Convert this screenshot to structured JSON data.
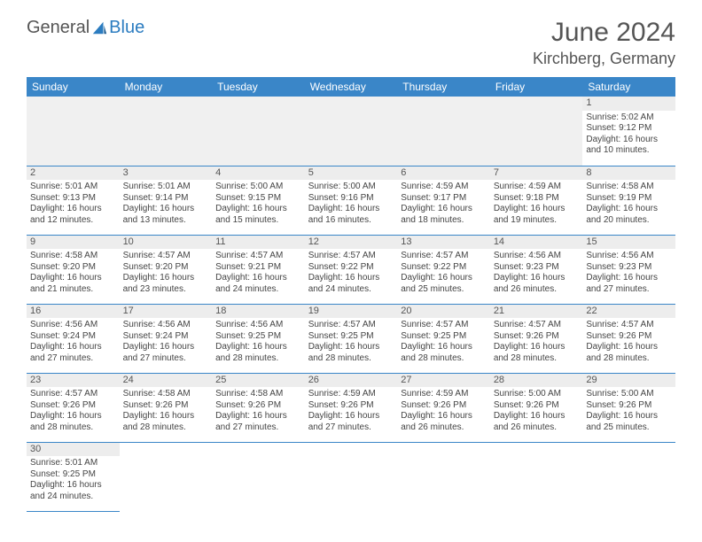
{
  "brand": {
    "general": "General",
    "blue": "Blue"
  },
  "title": "June 2024",
  "location": "Kirchberg, Germany",
  "colors": {
    "header_bg": "#3a86c8",
    "header_text": "#ffffff",
    "daynum_bg": "#ededed",
    "border": "#3a86c8",
    "brand_blue": "#2b7cc0"
  },
  "weekdays": [
    "Sunday",
    "Monday",
    "Tuesday",
    "Wednesday",
    "Thursday",
    "Friday",
    "Saturday"
  ],
  "first_weekday_index": 6,
  "days": [
    {
      "n": 1,
      "sr": "5:02 AM",
      "ss": "9:12 PM",
      "dl": "16 hours and 10 minutes."
    },
    {
      "n": 2,
      "sr": "5:01 AM",
      "ss": "9:13 PM",
      "dl": "16 hours and 12 minutes."
    },
    {
      "n": 3,
      "sr": "5:01 AM",
      "ss": "9:14 PM",
      "dl": "16 hours and 13 minutes."
    },
    {
      "n": 4,
      "sr": "5:00 AM",
      "ss": "9:15 PM",
      "dl": "16 hours and 15 minutes."
    },
    {
      "n": 5,
      "sr": "5:00 AM",
      "ss": "9:16 PM",
      "dl": "16 hours and 16 minutes."
    },
    {
      "n": 6,
      "sr": "4:59 AM",
      "ss": "9:17 PM",
      "dl": "16 hours and 18 minutes."
    },
    {
      "n": 7,
      "sr": "4:59 AM",
      "ss": "9:18 PM",
      "dl": "16 hours and 19 minutes."
    },
    {
      "n": 8,
      "sr": "4:58 AM",
      "ss": "9:19 PM",
      "dl": "16 hours and 20 minutes."
    },
    {
      "n": 9,
      "sr": "4:58 AM",
      "ss": "9:20 PM",
      "dl": "16 hours and 21 minutes."
    },
    {
      "n": 10,
      "sr": "4:57 AM",
      "ss": "9:20 PM",
      "dl": "16 hours and 23 minutes."
    },
    {
      "n": 11,
      "sr": "4:57 AM",
      "ss": "9:21 PM",
      "dl": "16 hours and 24 minutes."
    },
    {
      "n": 12,
      "sr": "4:57 AM",
      "ss": "9:22 PM",
      "dl": "16 hours and 24 minutes."
    },
    {
      "n": 13,
      "sr": "4:57 AM",
      "ss": "9:22 PM",
      "dl": "16 hours and 25 minutes."
    },
    {
      "n": 14,
      "sr": "4:56 AM",
      "ss": "9:23 PM",
      "dl": "16 hours and 26 minutes."
    },
    {
      "n": 15,
      "sr": "4:56 AM",
      "ss": "9:23 PM",
      "dl": "16 hours and 27 minutes."
    },
    {
      "n": 16,
      "sr": "4:56 AM",
      "ss": "9:24 PM",
      "dl": "16 hours and 27 minutes."
    },
    {
      "n": 17,
      "sr": "4:56 AM",
      "ss": "9:24 PM",
      "dl": "16 hours and 27 minutes."
    },
    {
      "n": 18,
      "sr": "4:56 AM",
      "ss": "9:25 PM",
      "dl": "16 hours and 28 minutes."
    },
    {
      "n": 19,
      "sr": "4:57 AM",
      "ss": "9:25 PM",
      "dl": "16 hours and 28 minutes."
    },
    {
      "n": 20,
      "sr": "4:57 AM",
      "ss": "9:25 PM",
      "dl": "16 hours and 28 minutes."
    },
    {
      "n": 21,
      "sr": "4:57 AM",
      "ss": "9:26 PM",
      "dl": "16 hours and 28 minutes."
    },
    {
      "n": 22,
      "sr": "4:57 AM",
      "ss": "9:26 PM",
      "dl": "16 hours and 28 minutes."
    },
    {
      "n": 23,
      "sr": "4:57 AM",
      "ss": "9:26 PM",
      "dl": "16 hours and 28 minutes."
    },
    {
      "n": 24,
      "sr": "4:58 AM",
      "ss": "9:26 PM",
      "dl": "16 hours and 28 minutes."
    },
    {
      "n": 25,
      "sr": "4:58 AM",
      "ss": "9:26 PM",
      "dl": "16 hours and 27 minutes."
    },
    {
      "n": 26,
      "sr": "4:59 AM",
      "ss": "9:26 PM",
      "dl": "16 hours and 27 minutes."
    },
    {
      "n": 27,
      "sr": "4:59 AM",
      "ss": "9:26 PM",
      "dl": "16 hours and 26 minutes."
    },
    {
      "n": 28,
      "sr": "5:00 AM",
      "ss": "9:26 PM",
      "dl": "16 hours and 26 minutes."
    },
    {
      "n": 29,
      "sr": "5:00 AM",
      "ss": "9:26 PM",
      "dl": "16 hours and 25 minutes."
    },
    {
      "n": 30,
      "sr": "5:01 AM",
      "ss": "9:25 PM",
      "dl": "16 hours and 24 minutes."
    }
  ],
  "labels": {
    "sunrise": "Sunrise:",
    "sunset": "Sunset:",
    "daylight": "Daylight:"
  }
}
